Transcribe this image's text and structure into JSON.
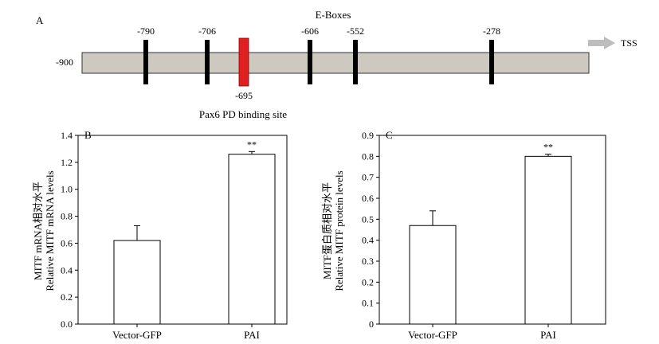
{
  "figure": {
    "panel_a": {
      "letter": "A",
      "heading": "E-Boxes",
      "start_label": "-900",
      "tss_label": "TSS",
      "box_positions": [
        "-790",
        "-706",
        "-606",
        "-552",
        "-278"
      ],
      "pax6_site": "-695",
      "pax6_caption": "Pax6 PD binding site",
      "colors": {
        "promoter": "#cdc9c0",
        "ebox": "#000000",
        "pax6": "#e02020",
        "arrow": "#bdbdbd"
      }
    },
    "panel_b": {
      "letter": "B",
      "ylabel_line1": "MITF mRNA相对水平",
      "ylabel_line2": "Relative MITF mRNA levels"
    },
    "panel_c": {
      "letter": "C",
      "ylabel_line1": "MITF蛋白质相对水平",
      "ylabel_line2": "Relative MITF protein levels"
    }
  },
  "chart_data": [
    {
      "type": "bar",
      "id": "B",
      "categories": [
        "Vector-GFP",
        "PAI"
      ],
      "values": [
        0.62,
        1.26
      ],
      "errors": [
        0.11,
        0.02
      ],
      "significance": [
        "",
        "**"
      ],
      "ylim": [
        0,
        1.4
      ],
      "yticks": [
        "0.0",
        "0.2",
        "0.4",
        "0.6",
        "0.8",
        "1.0",
        "1.2",
        "1.4"
      ],
      "ylabel": "Relative MITF mRNA levels"
    },
    {
      "type": "bar",
      "id": "C",
      "categories": [
        "Vector-GFP",
        "PAI"
      ],
      "values": [
        0.47,
        0.8
      ],
      "errors": [
        0.07,
        0.01
      ],
      "significance": [
        "",
        "**"
      ],
      "ylim": [
        0,
        0.9
      ],
      "yticks": [
        "0",
        "0.1",
        "0.2",
        "0.3",
        "0.4",
        "0.5",
        "0.6",
        "0.7",
        "0.8",
        "0.9"
      ],
      "ylabel": "Relative MITF protein levels"
    }
  ]
}
